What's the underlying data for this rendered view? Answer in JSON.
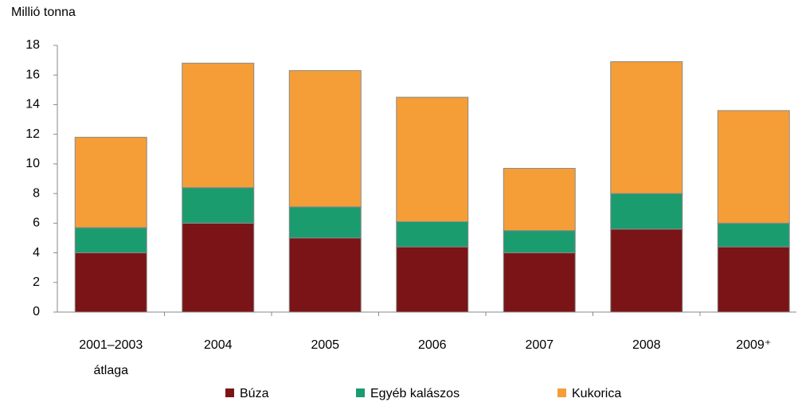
{
  "chart_data": {
    "type": "stacked_bar",
    "y_label": "Millió tonna",
    "categories": [
      "2001–2003\nátlaga",
      "2004",
      "2005",
      "2006",
      "2007",
      "2008",
      "2009⁺"
    ],
    "series": [
      {
        "name": "Búza",
        "color": "#7b1416",
        "values": [
          4.0,
          6.0,
          5.0,
          4.4,
          4.0,
          5.6,
          4.4
        ]
      },
      {
        "name": "Egyéb kalászos",
        "color": "#1a9c6f",
        "values": [
          1.7,
          2.4,
          2.1,
          1.7,
          1.5,
          2.4,
          1.6
        ]
      },
      {
        "name": "Kukorica",
        "color": "#f59e37",
        "values": [
          6.1,
          8.4,
          9.2,
          8.4,
          4.2,
          8.9,
          7.6
        ]
      }
    ],
    "ylim": [
      0,
      18
    ],
    "yticks": [
      0,
      2,
      4,
      6,
      8,
      10,
      12,
      14,
      16,
      18
    ],
    "grid": false,
    "legend": "bottom"
  }
}
